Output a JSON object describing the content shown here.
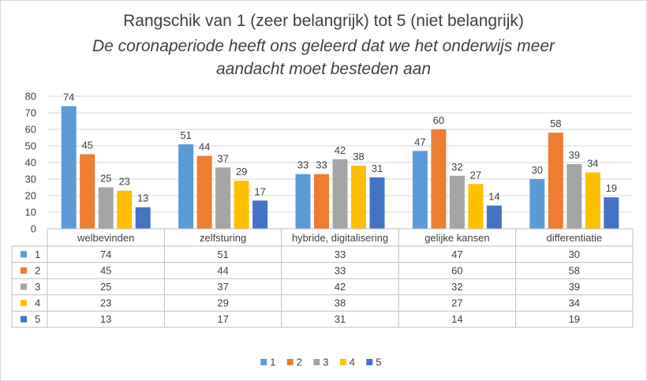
{
  "chart_data": {
    "type": "bar",
    "title": "Rangschik van 1 (zeer belangrijk) tot 5 (niet belangrijk)",
    "subtitle_lines": [
      "De coronaperiode heeft ons geleerd dat we het onderwijs meer",
      "aandacht moet besteden aan"
    ],
    "categories": [
      "welbevinden",
      "zelfsturing",
      "hybride, digitalisering",
      "gelijke kansen",
      "differentiatie"
    ],
    "series": [
      {
        "name": "1",
        "color": "#5b9bd5",
        "values": [
          74,
          51,
          33,
          47,
          30
        ]
      },
      {
        "name": "2",
        "color": "#ed7d31",
        "values": [
          45,
          44,
          33,
          60,
          58
        ]
      },
      {
        "name": "3",
        "color": "#a5a5a5",
        "values": [
          25,
          37,
          42,
          32,
          39
        ]
      },
      {
        "name": "4",
        "color": "#ffc000",
        "values": [
          23,
          29,
          38,
          27,
          34
        ]
      },
      {
        "name": "5",
        "color": "#4472c4",
        "values": [
          13,
          17,
          31,
          14,
          19
        ]
      }
    ],
    "ylim": [
      0,
      80
    ],
    "yticks": [
      0,
      10,
      20,
      30,
      40,
      50,
      60,
      70,
      80
    ],
    "grid": true,
    "data_table": true,
    "legend_position": "bottom"
  }
}
